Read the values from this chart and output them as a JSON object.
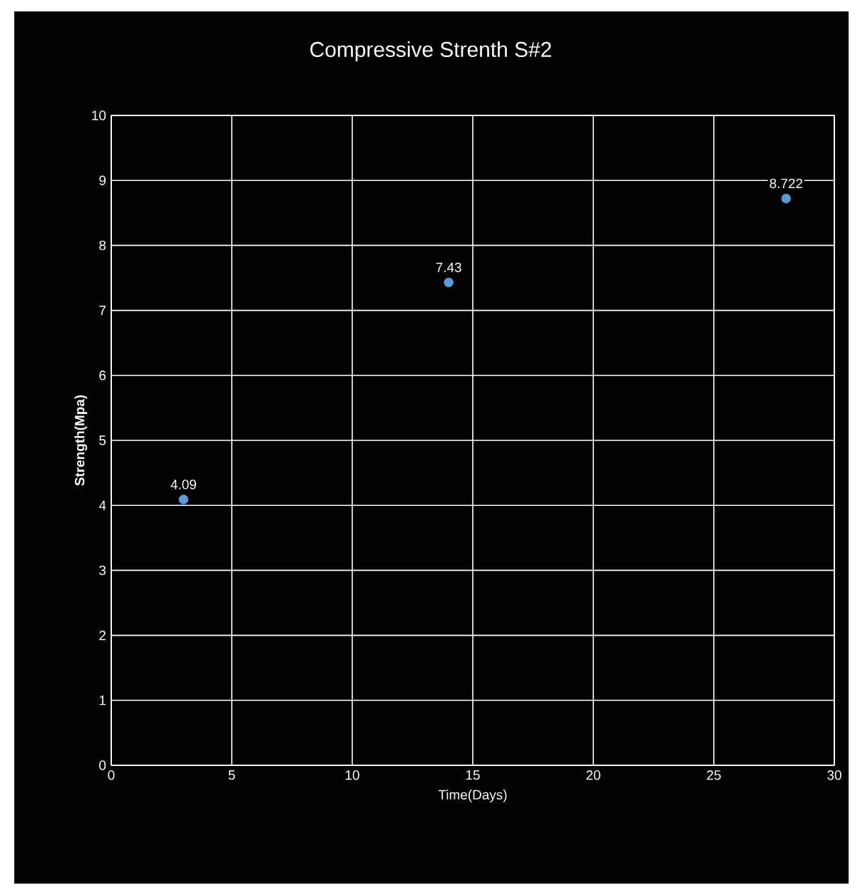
{
  "chart_data": {
    "type": "scatter",
    "title": "Compressive Strenth S#2",
    "xlabel": "Time(Days)",
    "ylabel": "Strength(Mpa)",
    "x": [
      3,
      14,
      28
    ],
    "values": [
      4.09,
      7.43,
      8.722
    ],
    "color": "#5b9bd5",
    "xlim": [
      0,
      30
    ],
    "xticks": [
      0,
      5,
      10,
      15,
      20,
      25,
      30
    ],
    "ylim": [
      0,
      10
    ],
    "yticks": [
      0,
      1,
      2,
      3,
      4,
      5,
      6,
      7,
      8,
      9,
      10
    ],
    "grid": true,
    "data_labels": true,
    "marker": "circle"
  }
}
